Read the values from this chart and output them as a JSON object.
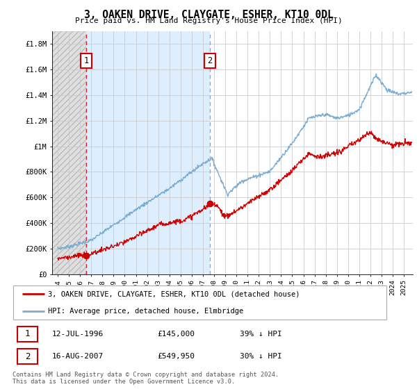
{
  "title": "3, OAKEN DRIVE, CLAYGATE, ESHER, KT10 0DL",
  "subtitle": "Price paid vs. HM Land Registry's House Price Index (HPI)",
  "legend_label_red": "3, OAKEN DRIVE, CLAYGATE, ESHER, KT10 0DL (detached house)",
  "legend_label_blue": "HPI: Average price, detached house, Elmbridge",
  "annotation1_label": "1",
  "annotation1_date": "12-JUL-1996",
  "annotation1_price": "£145,000",
  "annotation1_hpi": "39% ↓ HPI",
  "annotation2_label": "2",
  "annotation2_date": "16-AUG-2007",
  "annotation2_price": "£549,950",
  "annotation2_hpi": "30% ↓ HPI",
  "footer": "Contains HM Land Registry data © Crown copyright and database right 2024.\nThis data is licensed under the Open Government Licence v3.0.",
  "ylim": [
    0,
    1900000
  ],
  "yticks": [
    0,
    200000,
    400000,
    600000,
    800000,
    1000000,
    1200000,
    1400000,
    1600000,
    1800000
  ],
  "ytick_labels": [
    "£0",
    "£200K",
    "£400K",
    "£600K",
    "£800K",
    "£1M",
    "£1.2M",
    "£1.4M",
    "£1.6M",
    "£1.8M"
  ],
  "color_red": "#cc0000",
  "color_blue": "#7aadd4",
  "color_vline2": "#aaaacc",
  "color_grid": "#cccccc",
  "sale1_year": 1996.54,
  "sale1_price": 145000,
  "sale2_year": 2007.62,
  "sale2_price": 549950,
  "xlim_left": 1993.5,
  "xlim_right": 2025.8,
  "xtick_years": [
    1994,
    1995,
    1996,
    1997,
    1998,
    1999,
    2000,
    2001,
    2002,
    2003,
    2004,
    2005,
    2006,
    2007,
    2008,
    2009,
    2010,
    2011,
    2012,
    2013,
    2014,
    2015,
    2016,
    2017,
    2018,
    2019,
    2020,
    2021,
    2022,
    2023,
    2024,
    2025
  ]
}
